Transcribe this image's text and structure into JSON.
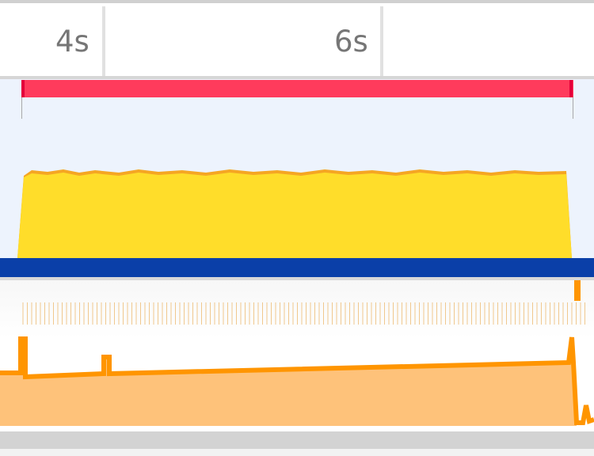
{
  "ruler": {
    "labels": [
      "4s",
      "6s"
    ]
  },
  "colors": {
    "recording": "#ff3b5c",
    "scripting": "#ffdd2a",
    "scripting_edge": "#f5a623",
    "network": "#0a3fa8",
    "heap_line": "#ff9500",
    "heap_fill": "#fec27a",
    "overview_bg": "#edf3fd"
  },
  "icons": []
}
